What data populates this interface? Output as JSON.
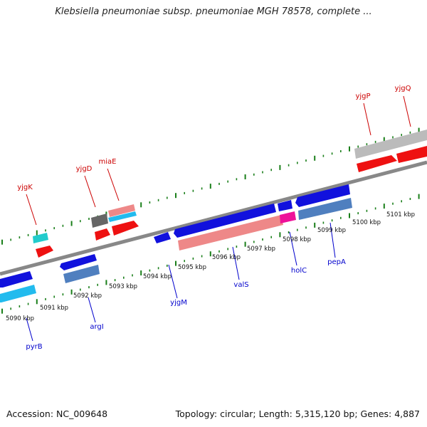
{
  "title": "Klebsiella pneumoniae subsp. pneumoniae MGH 78578, complete ...",
  "footer": {
    "accession": "Accession: NC_009648",
    "topology": "Topology: circular; Length: 5,315,120 bp; Genes: 4,887"
  },
  "colors": {
    "forward_label": "#cc0000",
    "reverse_label": "#0000cc",
    "tick": "#1a7f1a",
    "axis": "#777777"
  },
  "scale_labels": [
    "5090 kbp",
    "5091 kbp",
    "5092 kbp",
    "5093 kbp",
    "5094 kbp",
    "5095 kbp",
    "5096 kbp",
    "5097 kbp",
    "5098 kbp",
    "5099 kbp",
    "5100 kbp",
    "5101 kbp"
  ],
  "forward_genes": [
    "yjgK",
    "yjgD",
    "miaE",
    "yjgP",
    "yjgQ"
  ],
  "reverse_genes": [
    "pyrB",
    "argI",
    "yjgM",
    "valS",
    "holC",
    "pepA"
  ]
}
